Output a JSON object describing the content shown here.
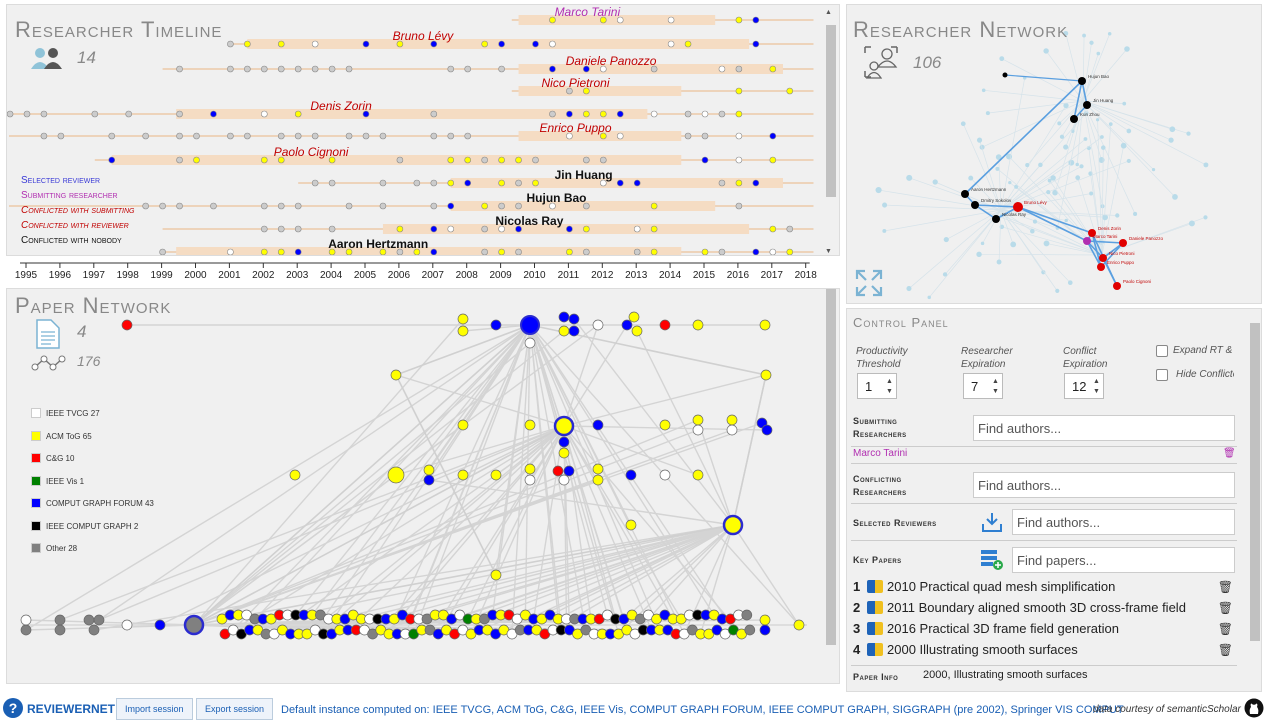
{
  "timeline": {
    "title": "Researcher Timeline",
    "count": "14",
    "legend": [
      {
        "label": "Selected reviewer",
        "color": "#3a3ad6"
      },
      {
        "label": "Submitting researcher",
        "color": "#b12fb1"
      },
      {
        "label": "Conflicted with submitting",
        "color": "#c00000"
      },
      {
        "label": "Conflicted with reviewer",
        "color": "#c00000"
      },
      {
        "label": "Conflicted with nobody",
        "color": "#111111"
      }
    ],
    "researchers": [
      {
        "name": "Marco Tarini",
        "color": "#b12fb1",
        "start": 2009.5,
        "end": 2015.3
      },
      {
        "name": "Bruno Lévy",
        "color": "#c00000",
        "start": 2001.5,
        "end": 2016.3
      },
      {
        "name": "Daniele Panozzo",
        "color": "#c00000",
        "start": 2009.5,
        "end": 2017.3
      },
      {
        "name": "Nico Pietroni",
        "color": "#c00000",
        "start": 2009.5,
        "end": 2014.3
      },
      {
        "name": "Denis Zorin",
        "color": "#c00000",
        "start": 1999.4,
        "end": 2013.3
      },
      {
        "name": "Enrico Puppo",
        "color": "#c00000",
        "start": 2009.5,
        "end": 2014.3
      },
      {
        "name": "Paolo Cignoni",
        "color": "#c00000",
        "start": 1997.5,
        "end": 2014.3
      },
      {
        "name": "Jin Huang",
        "color": "#111111",
        "start": 2007.5,
        "end": 2017.3
      },
      {
        "name": "Hujun Bao",
        "color": "#111111",
        "start": 2007.5,
        "end": 2015.3
      },
      {
        "name": "Nicolas Ray",
        "color": "#111111",
        "start": 2005.5,
        "end": 2016.3
      },
      {
        "name": "Aaron Hertzmann",
        "color": "#111111",
        "start": 1999.4,
        "end": 2014.3
      }
    ],
    "years": [
      "1995",
      "1996",
      "1997",
      "1998",
      "1999",
      "2000",
      "2001",
      "2002",
      "2003",
      "2004",
      "2005",
      "2006",
      "2007",
      "2008",
      "2009",
      "2010",
      "2011",
      "2012",
      "2013",
      "2014",
      "2015",
      "2016",
      "2017",
      "2018"
    ]
  },
  "paper_network": {
    "title": "Paper Network",
    "paper_count": "4",
    "edge_count": "176",
    "legend": [
      {
        "label": "IEEE TVCG 27",
        "color": "#ffffff"
      },
      {
        "label": "ACM ToG 65",
        "color": "#ffff00"
      },
      {
        "label": "C&G 10",
        "color": "#ff0000"
      },
      {
        "label": "IEEE Vis 1",
        "color": "#008000"
      },
      {
        "label": "COMPUT GRAPH FORUM 43",
        "color": "#0000ff"
      },
      {
        "label": "IEEE COMPUT GRAPH 2",
        "color": "#000000"
      },
      {
        "label": "Other 28",
        "color": "#808080"
      }
    ]
  },
  "researcher_network": {
    "title": "Researcher Network",
    "count": "106",
    "labels": [
      "Marco Tarini",
      "Bruno Lévy",
      "Denis Zorin",
      "Daniele Panozzo",
      "Enrico Puppo",
      "Paolo Cignoni",
      "Nico Pietroni",
      "Hujun Bao",
      "Jin Huang",
      "Kun Zhou",
      "Aaron Hertzmann",
      "Nicolas Ray",
      "Dmitry Sokolov"
    ]
  },
  "control_panel": {
    "title": "Control Panel",
    "productivity": {
      "label": "Productivity Threshold",
      "value": "1"
    },
    "expiration": {
      "label": "Researcher Expiration",
      "value": "7"
    },
    "conflict": {
      "label": "Conflict Expiration",
      "value": "12"
    },
    "expand_label": "Expand RT & RN",
    "hide_label": "Hide Conflicted",
    "submitting": {
      "label": "Submitting Researchers",
      "placeholder": "Find authors...",
      "value": "Marco Tarini"
    },
    "conflicting": {
      "label": "Conflicting Researchers",
      "placeholder": "Find authors..."
    },
    "selected": {
      "label": "Selected Reviewers",
      "placeholder": "Find authors..."
    },
    "key_papers": {
      "label": "Key Papers",
      "placeholder": "Find papers...",
      "items": [
        {
          "n": "1",
          "text": "2010 Practical quad mesh simplification"
        },
        {
          "n": "2",
          "text": "2011 Boundary aligned smooth 3D cross-frame field"
        },
        {
          "n": "3",
          "text": "2016 Practical 3D frame field generation"
        },
        {
          "n": "4",
          "text": "2000 Illustrating smooth surfaces"
        }
      ]
    },
    "paper_info": {
      "label": "Paper Info",
      "value": "2000, Illustrating smooth surfaces"
    }
  },
  "footer": {
    "brand": "REVIEWERNET",
    "import": "Import session",
    "export": "Export session",
    "instance": "Default instance computed on: IEEE TVCG, ACM ToG, C&G, IEEE Vis, COMPUT GRAPH FORUM, IEEE COMPUT GRAPH, SIGGRAPH (pre 2002), Springer VIS COMPUT",
    "credit": "data courtesy of semanticScholar"
  },
  "colors": {
    "highlight": "#f5dcc3",
    "accent": "#1a5fb4"
  }
}
